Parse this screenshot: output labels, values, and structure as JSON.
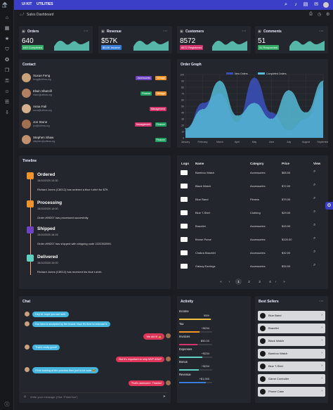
{
  "topbar": {
    "menu1": "UI KIT",
    "menu2": "UTILITIES"
  },
  "breadcrumb": {
    "page": "Sales Dashboard"
  },
  "stats": [
    {
      "title": "Orders",
      "value": "640",
      "badge": "640 Completed",
      "badge_color": "#33aa66",
      "line_color": "#5fd1c0"
    },
    {
      "title": "Revenue",
      "value": "$57K",
      "badge": "$5.6K Income",
      "badge_color": "#3a7dd6",
      "line_color": "#5fd1c0"
    },
    {
      "title": "Customers",
      "value": "8572",
      "badge": "8572 Registered",
      "badge_color": "#d6336c",
      "line_color": "#5fd1c0"
    },
    {
      "title": "Comments",
      "value": "51",
      "badge": "51 Responded",
      "badge_color": "#33aa66",
      "line_color": "#5fd1c0"
    }
  ],
  "contact": {
    "title": "Contact",
    "rows": [
      {
        "name": "Xuxue Feng",
        "email": "feng@ultima.org",
        "tags": [
          {
            "label": "Accessories",
            "color": "#6f42c1"
          },
          {
            "label": "Vintage",
            "color": "#f0932b"
          }
        ]
      },
      {
        "name": "Elwin Sharvill",
        "email": "elwin@ultima.org",
        "tags": [
          {
            "label": "Finance",
            "color": "#20a060"
          },
          {
            "label": "Vintage",
            "color": "#f0932b"
          }
        ]
      },
      {
        "name": "Anna Fali",
        "email": "anna@ultima.org",
        "tags": [
          {
            "label": "Management",
            "color": "#d6336c"
          }
        ]
      },
      {
        "name": "Jon Stone",
        "email": "jon@ultima.org",
        "tags": [
          {
            "label": "Management",
            "color": "#d6336c"
          },
          {
            "label": "Finance",
            "color": "#20a060"
          }
        ]
      },
      {
        "name": "Stephen Shaw",
        "email": "stephen@ultima.org",
        "tags": [
          {
            "label": "Finance",
            "color": "#20a060"
          }
        ]
      }
    ]
  },
  "order_graph": {
    "title": "Order Graph"
  },
  "chart_data": {
    "type": "area",
    "categories": [
      "January",
      "February",
      "March",
      "April",
      "May",
      "June",
      "July",
      "August",
      "September"
    ],
    "series": [
      {
        "name": "New Orders",
        "values": [
          10,
          55,
          70,
          25,
          95,
          40,
          12,
          30,
          80
        ],
        "color": "#3a4fb5"
      },
      {
        "name": "Completed Orders",
        "values": [
          15,
          45,
          90,
          35,
          55,
          30,
          75,
          40,
          90
        ],
        "color": "#55b8d6"
      }
    ],
    "ylim": [
      0,
      100
    ],
    "y_ticks": [
      "0",
      "10",
      "20",
      "30",
      "40",
      "50",
      "60",
      "70",
      "80",
      "90",
      "100"
    ],
    "legend": "top-center",
    "grid": true
  },
  "timeline": {
    "title": "Timeline",
    "events": [
      {
        "status": "Ordered",
        "date": "15/10/2020 10:30",
        "text": "Richard Jones (C8012) has ordered a blue t-shirt for $79.",
        "color": "#f0932b"
      },
      {
        "status": "Processing",
        "date": "15/10/2020 14:00",
        "text": "Order #99207 has processed succesfully.",
        "color": "#f0932b"
      },
      {
        "status": "Shipped",
        "date": "15/10/2020 16:15",
        "text": "Order #99207 has shipped with shipping code 2222302090.",
        "color": "#6f42c1"
      },
      {
        "status": "Delivered",
        "date": "16/10/2020 10:00",
        "text": "Richard Jones (C8012) has received his blue t-shirt.",
        "color": "#5fd1c0"
      }
    ]
  },
  "products": {
    "headers": {
      "logo": "Logo",
      "name": "Name",
      "category": "Category",
      "price": "Price",
      "view": "View"
    },
    "rows": [
      {
        "name": "Bamboo Watch",
        "category": "Accessories",
        "price": "$65.00"
      },
      {
        "name": "Black Watch",
        "category": "Accessories",
        "price": "$72.00"
      },
      {
        "name": "Blue Band",
        "category": "Fitness",
        "price": "$79.00"
      },
      {
        "name": "Blue T-Shirt",
        "category": "Clothing",
        "price": "$29.00"
      },
      {
        "name": "Bracelet",
        "category": "Accessories",
        "price": "$15.00"
      },
      {
        "name": "Brown Purse",
        "category": "Accessories",
        "price": "$120.00"
      },
      {
        "name": "Chakra Bracelet",
        "category": "Accessories",
        "price": "$32.00"
      },
      {
        "name": "Galaxy Earrings",
        "category": "Accessories",
        "price": "$34.00"
      }
    ],
    "pages": [
      "1",
      "2",
      "3",
      "4"
    ]
  },
  "chat": {
    "title": "Chat",
    "messages": [
      {
        "text": "Hey M. hope you are well.",
        "side": "left"
      },
      {
        "text": "Our idea is accepted by the board. Now it's time to execute it.",
        "side": "left"
      },
      {
        "text": "We did it! 🤠",
        "side": "right"
      },
      {
        "text": "That's really good!",
        "side": "left"
      },
      {
        "text": "But it's important to ship MVP ASAP",
        "side": "right"
      },
      {
        "text": "I'll be looking at the process then just to be sure 🤓",
        "side": "left"
      },
      {
        "text": "That's awesome. Thanks!",
        "side": "right"
      }
    ],
    "input_placeholder": "Write your message (Hint: 'PrimeVue')"
  },
  "activity": {
    "title": "Activity",
    "items": [
      {
        "label": "Income",
        "value": "95%",
        "color": "#f0c040",
        "pct": 0.95
      },
      {
        "label": "Tax",
        "value": "+$234",
        "color": "#f0932b",
        "pct": 0.62
      },
      {
        "label": "Invoices",
        "value": "$50.00",
        "color": "#d6336c",
        "pct": 0.55
      },
      {
        "label": "Expenses",
        "value": "+$234",
        "color": "#5fd1c0",
        "pct": 0.7
      },
      {
        "label": "Bonus",
        "value": "+$234",
        "color": "#5fd1c0",
        "pct": 0.6
      },
      {
        "label": "Revenue",
        "value": "+$1,000",
        "color": "#3a7dd6",
        "pct": 0.8
      }
    ]
  },
  "best_sellers": {
    "title": "Best Sellers",
    "items": [
      "Blue Band",
      "Bracelet",
      "Black Watch",
      "Bamboo Watch",
      "Blue T-Shirt",
      "Game Controller",
      "Phone Case"
    ]
  }
}
